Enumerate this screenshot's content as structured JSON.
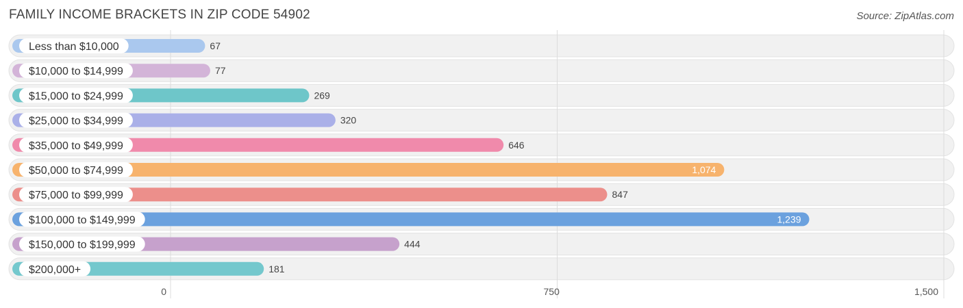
{
  "header": {
    "title": "FAMILY INCOME BRACKETS IN ZIP CODE 54902",
    "source": "Source: ZipAtlas.com"
  },
  "chart_data": {
    "type": "bar",
    "orientation": "horizontal",
    "title": "FAMILY INCOME BRACKETS IN ZIP CODE 54902",
    "xlabel": "",
    "ylabel": "",
    "xlim": [
      0,
      1500
    ],
    "ticks": [
      0,
      750,
      1500
    ],
    "tick_labels": [
      "0",
      "750",
      "1,500"
    ],
    "grid": true,
    "categories": [
      "Less than $10,000",
      "$10,000 to $14,999",
      "$15,000 to $24,999",
      "$25,000 to $34,999",
      "$35,000 to $49,999",
      "$50,000 to $74,999",
      "$75,000 to $99,999",
      "$100,000 to $149,999",
      "$150,000 to $199,999",
      "$200,000+"
    ],
    "values": [
      67,
      77,
      269,
      320,
      646,
      1074,
      847,
      1239,
      444,
      181
    ],
    "value_labels": [
      "67",
      "77",
      "269",
      "320",
      "646",
      "1,074",
      "847",
      "1,239",
      "444",
      "181"
    ],
    "colors": [
      "#aac8ee",
      "#d3b4d8",
      "#6ec6c9",
      "#aab0e8",
      "#f08aab",
      "#f7b36d",
      "#ec8f8b",
      "#6ba1de",
      "#c6a1cc",
      "#74c8cd"
    ]
  }
}
